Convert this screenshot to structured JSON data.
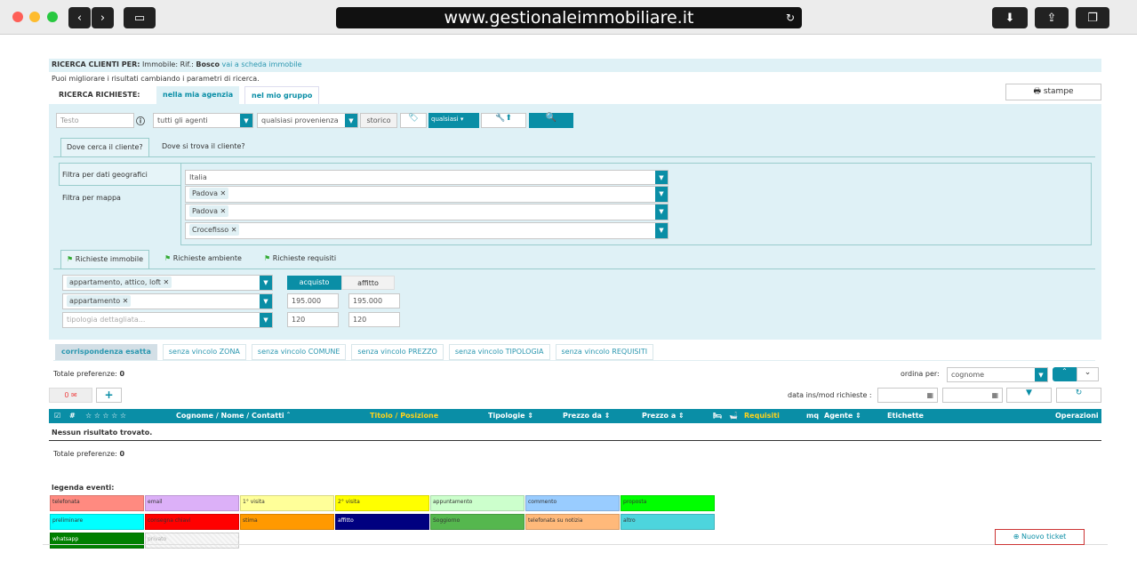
{
  "browser": {
    "url": "www.gestionaleimmobiliare.it"
  },
  "header": {
    "label": "RICERCA CLIENTI PER:",
    "context": "Immobile: Rif.:",
    "ref": "Bosco",
    "link": "vai a scheda immobile",
    "hint": "Puoi migliorare i risultati cambiando i parametri di ricerca.",
    "print": "stampe"
  },
  "scope": {
    "label": "RICERCA RICHIESTE:",
    "tabs": [
      "nella mia agenzia",
      "nel mio gruppo"
    ]
  },
  "filters": {
    "text_placeholder": "Testo",
    "agents": "tutti gli agenti",
    "source": "qualsiasi provenienza",
    "history": "storico",
    "tag_select": "qualsiasi"
  },
  "location_tabs": [
    "Dove cerca il cliente?",
    "Dove si trova il cliente?"
  ],
  "geo": {
    "side": [
      "Filtra per dati geografici",
      "Filtra per mappa"
    ],
    "country": "Italia",
    "tags": [
      "Padova",
      "Padova",
      "Crocefisso"
    ]
  },
  "req_tabs": [
    "Richieste immobile",
    "Richieste ambiente",
    "Richieste requisiti"
  ],
  "req": {
    "types": "appartamento, attico, loft",
    "subtype": "appartamento",
    "detail_placeholder": "tipologia dettagliata...",
    "contract": [
      "acquisto",
      "affitto"
    ],
    "price_from": "195.000",
    "price_to": "195.000",
    "mq_from": "120",
    "mq_to": "120"
  },
  "match_tabs": [
    "corrispondenza esatta",
    "senza vincolo ZONA",
    "senza vincolo COMUNE",
    "senza vincolo PREZZO",
    "senza vincolo TIPOLOGIA",
    "senza vincolo REQUISITI"
  ],
  "totals": {
    "label": "Totale preferenze:",
    "value": "0"
  },
  "sort": {
    "label": "ordina per:",
    "value": "cognome",
    "date_label": "data ins/mod richieste :"
  },
  "mail_count": "0",
  "table": {
    "cols": [
      "#",
      "☆ ☆ ☆ ☆ ☆",
      "Cognome / Nome / Contatti ˆ",
      "Titolo / Posizione",
      "Tipologie ⇕",
      "Prezzo da ⇕",
      "Prezzo a ⇕",
      "Requisiti",
      "mq",
      "Agente ⇕",
      "Etichette",
      "Operazioni"
    ],
    "empty": "Nessun risultato trovato."
  },
  "legend": {
    "title": "legenda eventi:",
    "items": [
      {
        "label": "telefonata",
        "color": "#ff8a80"
      },
      {
        "label": "email",
        "color": "#dcb0f8"
      },
      {
        "label": "1° visita",
        "color": "#ffff99"
      },
      {
        "label": "2° visita",
        "color": "#ffff00"
      },
      {
        "label": "appuntamento",
        "color": "#ccffcc"
      },
      {
        "label": "commento",
        "color": "#99ccff"
      },
      {
        "label": "proposta",
        "color": "#00ff00"
      },
      {
        "label": "preliminare",
        "color": "#00ffff"
      },
      {
        "label": "consegna chiavi",
        "color": "#ff0000"
      },
      {
        "label": "stima",
        "color": "#ff9900"
      },
      {
        "label": "affitto",
        "color": "#000080"
      },
      {
        "label": "Soggiorno",
        "color": "#55b74e"
      },
      {
        "label": "telefonata su notizia",
        "color": "#ffb97a"
      },
      {
        "label": "altro",
        "color": "#4dd5dd"
      },
      {
        "label": "whatsapp",
        "color": "#008000"
      },
      {
        "label": "privato",
        "color": "#eeeeee"
      }
    ]
  },
  "ticket": "Nuovo ticket"
}
